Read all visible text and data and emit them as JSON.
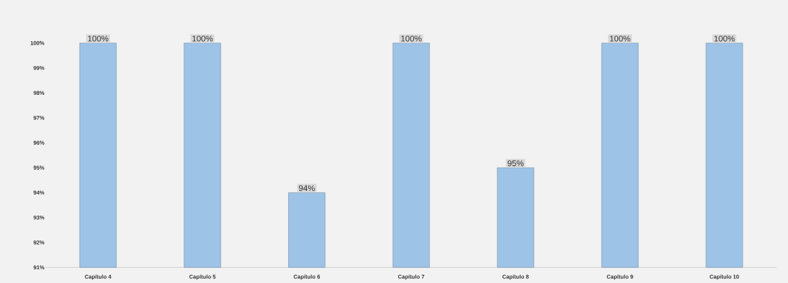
{
  "chart_data": {
    "type": "bar",
    "categories": [
      "Capítulo 4",
      "Capítulo 5",
      "Capítulo 6",
      "Capítulo 7",
      "Capítulo 8",
      "Capítulo 9",
      "Capítulo 10"
    ],
    "values": [
      100,
      100,
      94,
      100,
      95,
      100,
      100
    ],
    "value_labels": [
      "100%",
      "100%",
      "94%",
      "100%",
      "95%",
      "100%",
      "100%"
    ],
    "color": "#9dc3e6",
    "ylim": [
      91,
      100
    ],
    "yticks": [
      {
        "value": 91,
        "label": "91%"
      },
      {
        "value": 92,
        "label": "92%"
      },
      {
        "value": 93,
        "label": "93%"
      },
      {
        "value": 94,
        "label": "94%"
      },
      {
        "value": 95,
        "label": "95%"
      },
      {
        "value": 96,
        "label": "96%"
      },
      {
        "value": 97,
        "label": "97%"
      },
      {
        "value": 98,
        "label": "98%"
      },
      {
        "value": 99,
        "label": "99%"
      },
      {
        "value": 100,
        "label": "100%"
      }
    ]
  }
}
